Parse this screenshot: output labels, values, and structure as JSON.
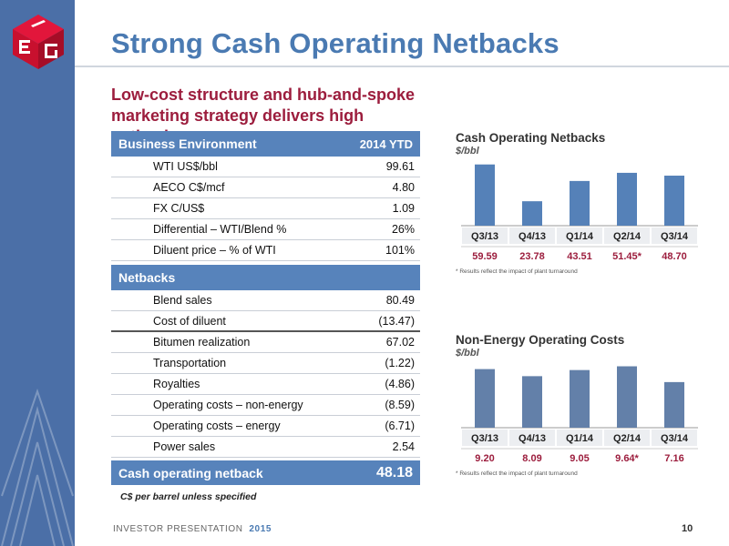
{
  "header": {
    "title": "Strong Cash Operating Netbacks",
    "subtitle": "Low-cost structure and hub-and-spoke marketing strategy delivers high netbacks"
  },
  "table": {
    "business_header": "Business Environment",
    "year_header": "2014 YTD",
    "business_rows": [
      {
        "label": "WTI US$/bbl",
        "value": "99.61"
      },
      {
        "label": "AECO C$/mcf",
        "value": "4.80"
      },
      {
        "label": "FX C/US$",
        "value": "1.09"
      },
      {
        "label": "Differential – WTI/Blend %",
        "value": "26%"
      },
      {
        "label": "Diluent price – % of WTI",
        "value": "101%"
      }
    ],
    "netbacks_header": "Netbacks",
    "netback_rows": [
      {
        "label": "Blend sales",
        "value": "80.49"
      },
      {
        "label": "Cost of diluent",
        "value": "(13.47)"
      },
      {
        "label": "Bitumen realization",
        "value": "67.02"
      },
      {
        "label": "Transportation",
        "value": "(1.22)"
      },
      {
        "label": "Royalties",
        "value": "(4.86)"
      },
      {
        "label": "Operating costs – non-energy",
        "value": "(8.59)"
      },
      {
        "label": "Operating costs – energy",
        "value": "(6.71)"
      },
      {
        "label": "Power sales",
        "value": "2.54"
      }
    ],
    "total_label": "Cash operating netback",
    "total_value": "48.18",
    "footnote": "C$ per barrel unless specified"
  },
  "chart_data": [
    {
      "type": "bar",
      "title": "Cash Operating Netbacks",
      "ylabel": "$/bbl",
      "categories": [
        "Q3/13",
        "Q4/13",
        "Q1/14",
        "Q2/14",
        "Q3/14"
      ],
      "values": [
        59.59,
        23.78,
        43.51,
        51.45,
        48.7
      ],
      "data_labels": [
        "59.59",
        "23.78",
        "43.51",
        "51.45*",
        "48.70"
      ],
      "note": "* Results reflect the impact of plant turnaround",
      "bar_color": "#5581b8",
      "ylim": [
        0,
        62
      ]
    },
    {
      "type": "bar",
      "title": "Non-Energy Operating Costs",
      "ylabel": "$/bbl",
      "categories": [
        "Q3/13",
        "Q4/13",
        "Q1/14",
        "Q2/14",
        "Q3/14"
      ],
      "values": [
        9.2,
        8.09,
        9.05,
        9.64,
        7.16
      ],
      "data_labels": [
        "9.20",
        "8.09",
        "9.05",
        "9.64*",
        "7.16"
      ],
      "note": "* Results reflect the impact of plant turnaround",
      "bar_color": "#6380a9",
      "ylim": [
        0,
        10
      ]
    }
  ],
  "footer": {
    "text": "INVESTOR PRESENTATION",
    "year": "2015",
    "page": "10"
  },
  "colors": {
    "band": "#4b6fa7",
    "title": "#4a7ab2",
    "subtitle": "#9c1d3d",
    "table_header": "#5783bb",
    "label_red": "#9c1d3d"
  },
  "logo": {
    "icon": "meg-logo-icon"
  }
}
